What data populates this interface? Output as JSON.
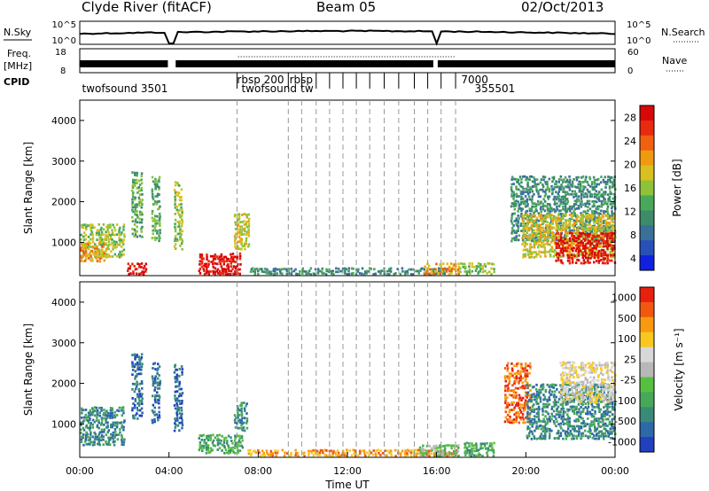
{
  "header": {
    "station": "Clyde River (fitACF)",
    "beam": "Beam 05",
    "date": "02/Oct/2013"
  },
  "strips": {
    "nsky": {
      "left_label": "N.Sky",
      "ticks_left": [
        "10^5",
        "10^0"
      ],
      "ticks_right": [
        "10^5",
        "10^0"
      ],
      "right_label": "N.Search"
    },
    "freq": {
      "left_label_line1": "Freq.",
      "left_label_line2": "[MHz]",
      "ticks_left": [
        "18",
        "8"
      ],
      "ticks_right": [
        "60",
        "0"
      ],
      "right_label": "Nave"
    },
    "cpid": {
      "label": "CPID",
      "entries": [
        {
          "text": "twofsound 3501",
          "hour": 0.1,
          "row": 1
        },
        {
          "text": "rbsp 200",
          "hour": 7.05,
          "row": 0
        },
        {
          "text": "twofsound",
          "hour": 7.25,
          "row": 1
        },
        {
          "text": "rbsp",
          "hour": 9.4,
          "row": 0
        },
        {
          "text": "tw",
          "hour": 9.9,
          "row": 1
        },
        {
          "text": "7000",
          "hour": 17.1,
          "row": 0
        },
        {
          "text": "355501",
          "hour": 17.7,
          "row": 1
        }
      ]
    }
  },
  "chart_data": [
    {
      "type": "heatmap",
      "name": "power",
      "ylabel": "Slant Range [km]",
      "ylim": [
        180,
        4500
      ],
      "yticks": [
        "4000",
        "3000",
        "2000",
        "1000"
      ],
      "xlabel": "Time UT",
      "xlim": [
        0,
        24
      ],
      "xticks": [
        "00:00",
        "04:00",
        "08:00",
        "12:00",
        "16:00",
        "20:00",
        "00:00"
      ],
      "colorbar_label": "Power [dB]",
      "colorbar_ticks": [
        "28",
        "24",
        "20",
        "16",
        "12",
        "8",
        "4"
      ],
      "colorbar_colors": [
        "#1020e0",
        "#2850b8",
        "#3a6f9a",
        "#3d8b6a",
        "#4aa85a",
        "#8ec23a",
        "#d8c020",
        "#f09a10",
        "#f06010",
        "#e82a10",
        "#d80808"
      ],
      "blobs": [
        {
          "t0": 0.0,
          "t1": 2.0,
          "r0": 600,
          "r1": 1450,
          "level": 5
        },
        {
          "t0": 0.0,
          "t1": 1.2,
          "r0": 500,
          "r1": 950,
          "level": 7
        },
        {
          "t0": 2.1,
          "t1": 3.0,
          "r0": 180,
          "r1": 450,
          "level": 10
        },
        {
          "t0": 2.3,
          "t1": 2.8,
          "r0": 1100,
          "r1": 2700,
          "level": 4
        },
        {
          "t0": 3.2,
          "t1": 3.6,
          "r0": 1000,
          "r1": 2600,
          "level": 4
        },
        {
          "t0": 4.2,
          "t1": 4.6,
          "r0": 800,
          "r1": 2500,
          "level": 5
        },
        {
          "t0": 5.3,
          "t1": 7.2,
          "r0": 180,
          "r1": 700,
          "level": 10
        },
        {
          "t0": 6.9,
          "t1": 7.6,
          "r0": 800,
          "r1": 1700,
          "level": 6
        },
        {
          "t0": 7.6,
          "t1": 16.5,
          "r0": 180,
          "r1": 350,
          "level": 3
        },
        {
          "t0": 15.4,
          "t1": 17.0,
          "r0": 180,
          "r1": 450,
          "level": 7
        },
        {
          "t0": 17.0,
          "t1": 18.6,
          "r0": 180,
          "r1": 500,
          "level": 5
        },
        {
          "t0": 19.3,
          "t1": 24.0,
          "r0": 1000,
          "r1": 2600,
          "level": 3
        },
        {
          "t0": 19.8,
          "t1": 24.0,
          "r0": 600,
          "r1": 1700,
          "level": 6
        },
        {
          "t0": 21.3,
          "t1": 24.0,
          "r0": 450,
          "r1": 1200,
          "level": 10
        }
      ]
    },
    {
      "type": "heatmap",
      "name": "velocity",
      "ylabel": "Slant Range [km]",
      "ylim": [
        180,
        4500
      ],
      "yticks": [
        "4000",
        "3000",
        "2000",
        "1000"
      ],
      "xlabel": "Time UT",
      "xlim": [
        0,
        24
      ],
      "xticks": [
        "00:00",
        "04:00",
        "08:00",
        "12:00",
        "16:00",
        "20:00",
        "00:00"
      ],
      "colorbar_label": "Velocity [m s⁻¹]",
      "colorbar_ticks": [
        "1000",
        "500",
        "100",
        "25",
        "-25",
        "-100",
        "-500",
        "-1000"
      ],
      "colorbar_colors": [
        "#2040c0",
        "#2d68a8",
        "#3a8a78",
        "#48a85a",
        "#58c040",
        "#b8b8b8",
        "#d8d8d8",
        "#f8c820",
        "#f89a10",
        "#f05810",
        "#e82010"
      ],
      "blobs": [
        {
          "t0": 0.0,
          "t1": 2.0,
          "r0": 450,
          "r1": 1400,
          "level": 2
        },
        {
          "t0": 2.3,
          "t1": 2.8,
          "r0": 1100,
          "r1": 2700,
          "level": 1
        },
        {
          "t0": 3.2,
          "t1": 3.6,
          "r0": 1000,
          "r1": 2500,
          "level": 1
        },
        {
          "t0": 4.2,
          "t1": 4.6,
          "r0": 800,
          "r1": 2500,
          "level": 1
        },
        {
          "t0": 5.3,
          "t1": 7.3,
          "r0": 250,
          "r1": 750,
          "level": 3
        },
        {
          "t0": 6.9,
          "t1": 7.5,
          "r0": 800,
          "r1": 1500,
          "level": 2
        },
        {
          "t0": 7.5,
          "t1": 17.0,
          "r0": 180,
          "r1": 350,
          "level": 8
        },
        {
          "t0": 15.2,
          "t1": 17.0,
          "r0": 180,
          "r1": 500,
          "level": 4
        },
        {
          "t0": 17.2,
          "t1": 18.6,
          "r0": 180,
          "r1": 550,
          "level": 3
        },
        {
          "t0": 19.0,
          "t1": 20.2,
          "r0": 1000,
          "r1": 2500,
          "level": 9
        },
        {
          "t0": 20.0,
          "t1": 24.0,
          "r0": 600,
          "r1": 2000,
          "level": 2
        },
        {
          "t0": 21.5,
          "t1": 24.0,
          "r0": 1500,
          "r1": 2500,
          "level": 6
        }
      ]
    }
  ],
  "markers": {
    "dashed_hours": [
      7.05,
      9.35,
      9.95,
      10.6,
      11.2,
      11.8,
      12.4,
      13.0,
      13.65,
      14.3,
      15.0,
      15.6,
      16.2,
      16.85
    ]
  }
}
